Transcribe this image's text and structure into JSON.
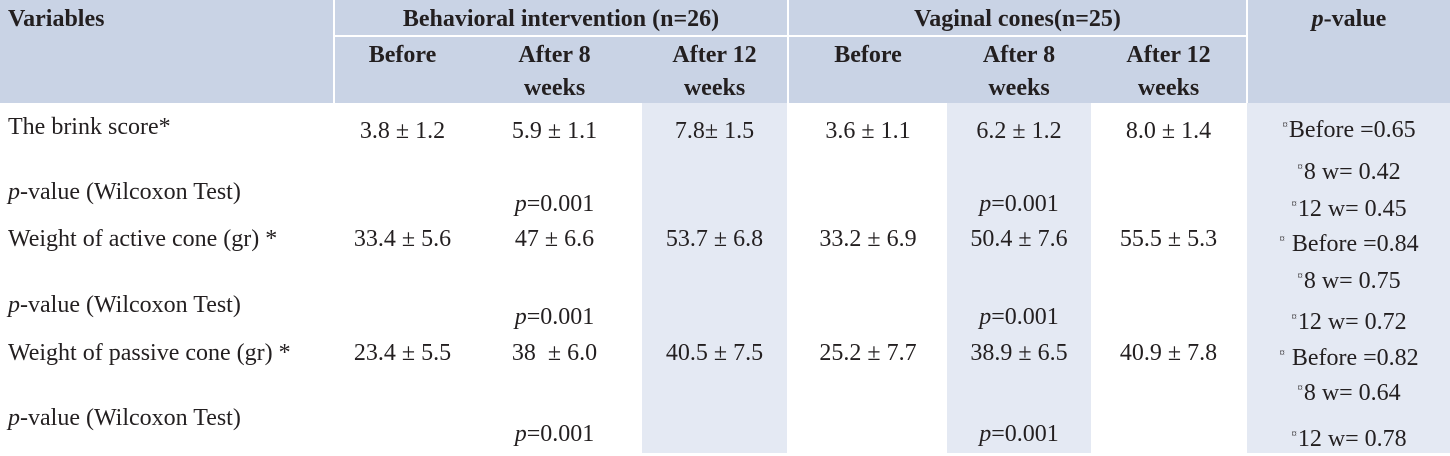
{
  "colors": {
    "header_bg": "#c9d3e5",
    "shaded_col_bg": "#e4e9f3",
    "text": "#231f20"
  },
  "header": {
    "variables": "Variables",
    "group1": "Behavioral intervention (n=26)",
    "group2": "Vaginal cones(n=25)",
    "pvalue_p": "p",
    "pvalue_rest": "-value",
    "sub": {
      "before1": "Before",
      "after8_1a": "After 8",
      "after8_1b": "weeks",
      "after12_1a": "After 12",
      "after12_1b": "weeks",
      "before2": "Before",
      "after8_2a": "After 8",
      "after8_2b": "weeks",
      "after12_2a": "After 12",
      "after12_2b": "weeks"
    }
  },
  "rows": {
    "brink": {
      "label": "The brink score*",
      "bi_before": "3.8 ± 1.2",
      "bi_8": "5.9 ± 1.1",
      "bi_12": "7.8± 1.5",
      "vc_before": "3.6 ± 1.1",
      "vc_8": "6.2 ± 1.2",
      "vc_12": "8.0 ± 1.4"
    },
    "brink_p": {
      "label_p": "p",
      "label_rest": "-value (Wilcoxon Test)",
      "bi_p": "p",
      "bi_val": "=0.001",
      "vc_p": "p",
      "vc_val": "=0.001"
    },
    "active": {
      "label": "Weight of active cone (gr) *",
      "bi_before": "33.4 ± 5.6",
      "bi_8": "47 ± 6.6",
      "bi_12": "53.7 ± 6.8",
      "vc_before": "33.2 ± 6.9",
      "vc_8": "50.4 ± 7.6",
      "vc_12": "55.5 ± 5.3"
    },
    "active_p": {
      "label_p": "p",
      "label_rest": "-value (Wilcoxon Test)",
      "bi_p": "p",
      "bi_val": "=0.001",
      "vc_p": "p",
      "vc_val": "=0.001"
    },
    "passive": {
      "label": "Weight of passive cone (gr) *",
      "bi_before": "23.4 ± 5.5",
      "bi_8": "38  ± 6.0",
      "bi_12": "40.5 ± 7.5",
      "vc_before": "25.2 ± 7.7",
      "vc_8": "38.9 ± 6.5",
      "vc_12": "40.9 ± 7.8"
    },
    "passive_p": {
      "label_p": "p",
      "label_rest": "-value (Wilcoxon Test)",
      "bi_p": "p",
      "bi_val": "=0.001",
      "vc_p": "p",
      "vc_val": "=0.001"
    }
  },
  "pvalues": {
    "symbol": "¤",
    "brink": [
      "Before =0.65",
      "8 w= 0.42",
      "12 w= 0.45"
    ],
    "active": [
      " Before =0.84",
      "8 w= 0.75",
      "12 w= 0.72"
    ],
    "passive": [
      " Before =0.82",
      "8 w= 0.64",
      "12 w= 0.78"
    ]
  }
}
